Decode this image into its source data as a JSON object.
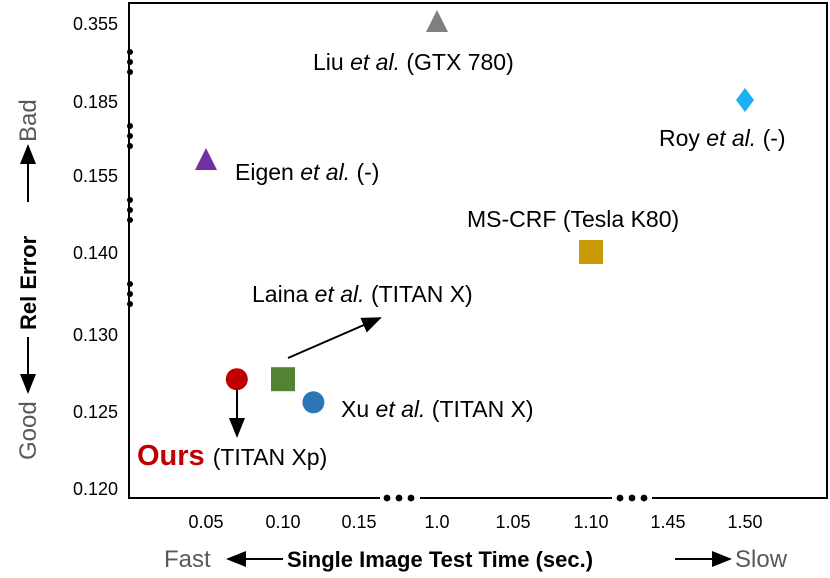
{
  "chart_data": {
    "type": "scatter",
    "xlabel": "Single Image Test Time (sec.)",
    "ylabel": "Rel Error",
    "x_hint_left": "Fast",
    "x_hint_right": "Slow",
    "y_hint_top": "Bad",
    "y_hint_bottom": "Good",
    "x_ticks": [
      "0.05",
      "0.10",
      "0.15",
      "1.0",
      "1.05",
      "1.10",
      "1.45",
      "1.50"
    ],
    "y_ticks": [
      "0.355",
      "0.185",
      "0.155",
      "0.140",
      "0.130",
      "0.125",
      "0.120"
    ],
    "points": [
      {
        "method": "Liu",
        "italic": "et al.",
        "device": "(GTX 780)",
        "x": 1.0,
        "y": 0.355,
        "marker": "triangle",
        "color": "#7f7f7f"
      },
      {
        "method": "Roy",
        "italic": "et al.",
        "device": "(-)",
        "x": 1.5,
        "y": 0.185,
        "marker": "diamond",
        "color": "#1ab1f0"
      },
      {
        "method": "Eigen",
        "italic": "et al.",
        "device": "(-)",
        "x": 0.05,
        "y": 0.158,
        "marker": "triangle",
        "color": "#7030a0"
      },
      {
        "method": "MS-CRF",
        "italic": "",
        "device": "(Tesla K80)",
        "x": 1.1,
        "y": 0.14,
        "marker": "square",
        "color": "#c99a06"
      },
      {
        "method": "Laina",
        "italic": "et al.",
        "device": "(TITAN X)",
        "x": 0.1,
        "y": 0.127,
        "marker": "square",
        "color": "#548235"
      },
      {
        "method": "Xu",
        "italic": "et al.",
        "device": "(TITAN X)",
        "x": 0.12,
        "y": 0.1255,
        "marker": "circle",
        "color": "#2e75b6"
      },
      {
        "method": "Ours",
        "italic": "",
        "device": "(TITAN Xp)",
        "x": 0.07,
        "y": 0.127,
        "marker": "circle",
        "color": "#c00000"
      }
    ]
  }
}
